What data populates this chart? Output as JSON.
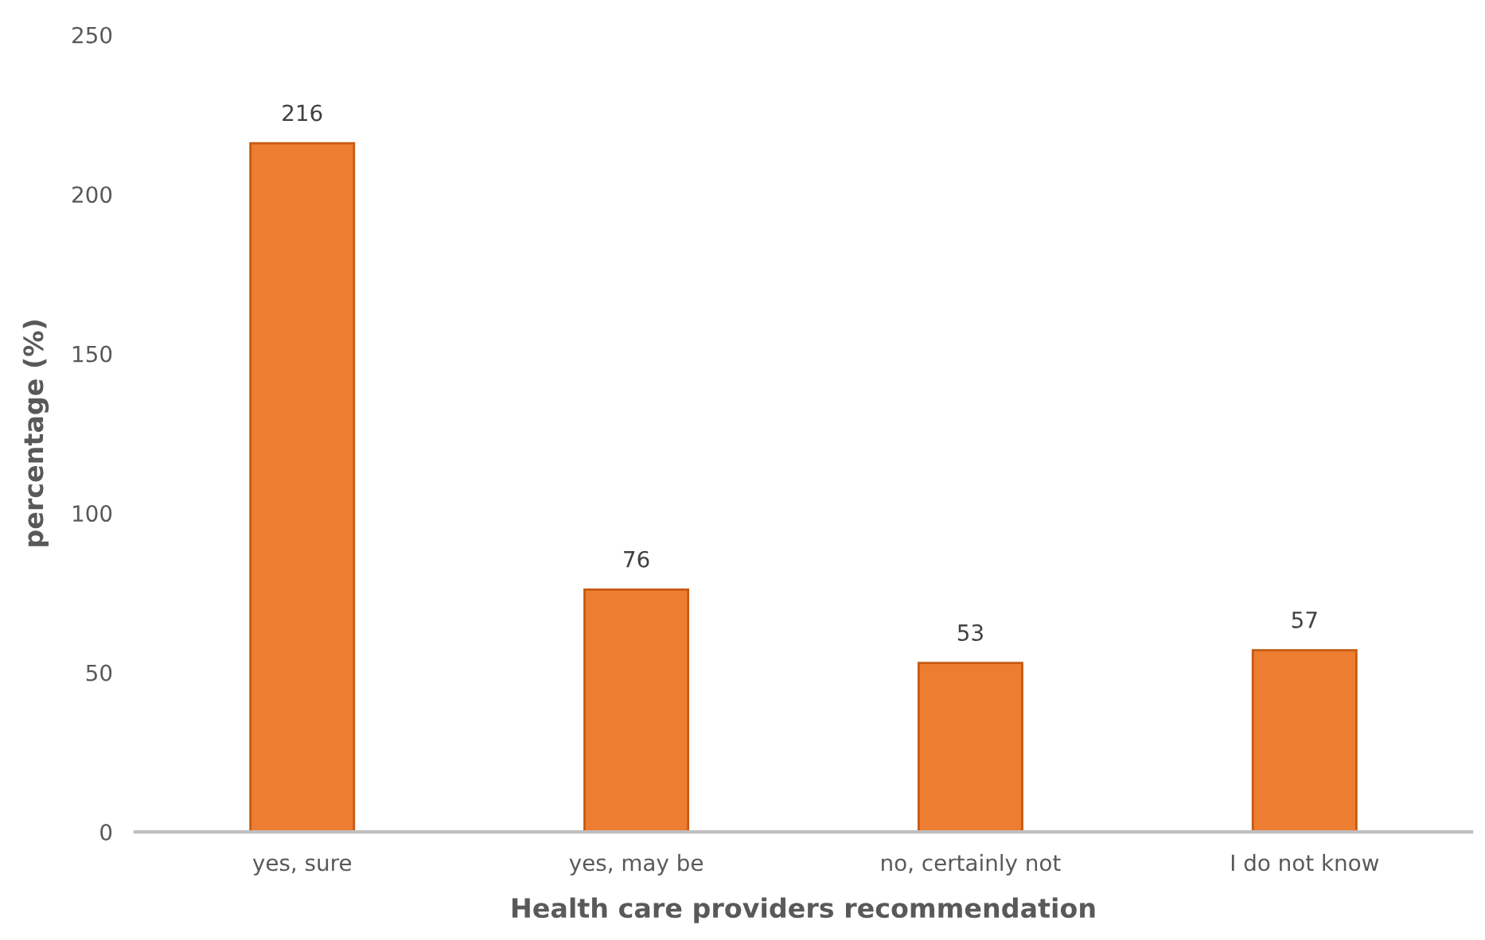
{
  "chart_data": {
    "type": "bar",
    "categories": [
      "yes, sure",
      "yes, may be",
      "no, certainly not",
      "I do not know"
    ],
    "values": [
      216,
      76,
      53,
      57
    ],
    "color": "#ed7d31",
    "xlabel": "Health care providers recommendation",
    "ylabel": "percentage (%)",
    "ylim": [
      0,
      250
    ],
    "yticks": [
      0,
      50,
      100,
      150,
      200,
      250
    ],
    "data_labels": true,
    "grid": false,
    "legend": false
  }
}
